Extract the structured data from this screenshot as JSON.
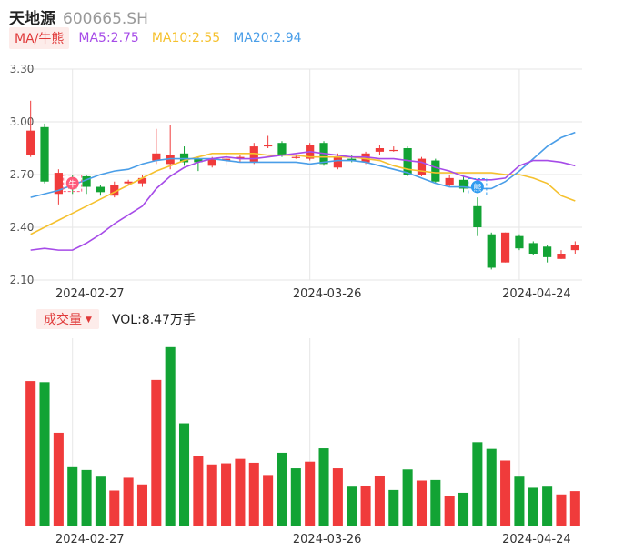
{
  "header": {
    "name": "天地源",
    "code": "600665.SH"
  },
  "ma_bar": {
    "toggle_label": "MA/牛熊",
    "items": [
      {
        "text": "MA5:2.75",
        "color": "#a64be8"
      },
      {
        "text": "MA10:2.55",
        "color": "#f5c12e"
      },
      {
        "text": "MA20:2.94",
        "color": "#4a9ee8"
      }
    ]
  },
  "volume_bar": {
    "toggle_label": "成交量",
    "caret": "▼",
    "vol_text": "VOL:8.47万手"
  },
  "colors": {
    "up": "#f03b3b",
    "down": "#12a334",
    "grid": "#e6e6e6",
    "axis_text": "#555555"
  },
  "markers": [
    {
      "index": 3,
      "label": "牛",
      "color": "#ff5a7a"
    },
    {
      "index": 32,
      "label": "熊",
      "color": "#2f9bf0"
    }
  ],
  "chart_data": [
    {
      "type": "candlestick",
      "y_ticks": [
        "3.30",
        "3.00",
        "2.70",
        "2.40",
        "2.10"
      ],
      "ylim": [
        2.1,
        3.3
      ],
      "x_ticks": [
        {
          "index": 3,
          "label": "2024-02-27"
        },
        {
          "index": 20,
          "label": "2024-03-26"
        },
        {
          "index": 35,
          "label": "2024-04-24"
        }
      ],
      "ohlc": [
        [
          2.81,
          3.12,
          2.8,
          2.95
        ],
        [
          2.97,
          2.99,
          2.65,
          2.66
        ],
        [
          2.59,
          2.73,
          2.53,
          2.71
        ],
        [
          2.63,
          2.7,
          2.59,
          2.62
        ],
        [
          2.69,
          2.7,
          2.59,
          2.63
        ],
        [
          2.63,
          2.64,
          2.58,
          2.6
        ],
        [
          2.58,
          2.66,
          2.57,
          2.64
        ],
        [
          2.65,
          2.67,
          2.64,
          2.66
        ],
        [
          2.65,
          2.7,
          2.63,
          2.68
        ],
        [
          2.78,
          2.96,
          2.76,
          2.82
        ],
        [
          2.76,
          2.98,
          2.73,
          2.81
        ],
        [
          2.82,
          2.86,
          2.75,
          2.77
        ],
        [
          2.79,
          2.8,
          2.72,
          2.77
        ],
        [
          2.75,
          2.8,
          2.74,
          2.79
        ],
        [
          2.78,
          2.82,
          2.75,
          2.79
        ],
        [
          2.79,
          2.81,
          2.77,
          2.8
        ],
        [
          2.77,
          2.88,
          2.76,
          2.86
        ],
        [
          2.86,
          2.92,
          2.85,
          2.87
        ],
        [
          2.88,
          2.89,
          2.8,
          2.81
        ],
        [
          2.8,
          2.81,
          2.79,
          2.8
        ],
        [
          2.79,
          2.88,
          2.78,
          2.87
        ],
        [
          2.88,
          2.89,
          2.75,
          2.76
        ],
        [
          2.74,
          2.82,
          2.73,
          2.8
        ],
        [
          2.79,
          2.81,
          2.77,
          2.78
        ],
        [
          2.77,
          2.83,
          2.76,
          2.82
        ],
        [
          2.83,
          2.87,
          2.81,
          2.85
        ],
        [
          2.84,
          2.86,
          2.83,
          2.84
        ],
        [
          2.85,
          2.86,
          2.69,
          2.7
        ],
        [
          2.7,
          2.8,
          2.69,
          2.79
        ],
        [
          2.78,
          2.79,
          2.65,
          2.66
        ],
        [
          2.64,
          2.7,
          2.63,
          2.68
        ],
        [
          2.67,
          2.69,
          2.6,
          2.62
        ],
        [
          2.52,
          2.57,
          2.35,
          2.4
        ],
        [
          2.36,
          2.37,
          2.16,
          2.17
        ],
        [
          2.2,
          2.37,
          2.2,
          2.37
        ],
        [
          2.35,
          2.36,
          2.27,
          2.28
        ],
        [
          2.31,
          2.32,
          2.24,
          2.25
        ],
        [
          2.29,
          2.3,
          2.2,
          2.23
        ],
        [
          2.22,
          2.27,
          2.22,
          2.25
        ],
        [
          2.27,
          2.32,
          2.25,
          2.3
        ]
      ],
      "ma5": [
        2.27,
        2.28,
        2.27,
        2.27,
        2.31,
        2.36,
        2.42,
        2.47,
        2.52,
        2.62,
        2.69,
        2.74,
        2.77,
        2.79,
        2.8,
        2.79,
        2.79,
        2.8,
        2.81,
        2.82,
        2.83,
        2.82,
        2.81,
        2.8,
        2.8,
        2.79,
        2.79,
        2.78,
        2.77,
        2.74,
        2.72,
        2.69,
        2.67,
        2.67,
        2.68,
        2.75,
        2.78,
        2.78,
        2.77,
        2.75
      ],
      "ma10": [
        2.36,
        2.4,
        2.44,
        2.48,
        2.52,
        2.56,
        2.6,
        2.64,
        2.68,
        2.72,
        2.75,
        2.78,
        2.8,
        2.82,
        2.82,
        2.82,
        2.82,
        2.81,
        2.81,
        2.81,
        2.8,
        2.8,
        2.8,
        2.8,
        2.79,
        2.78,
        2.75,
        2.73,
        2.72,
        2.71,
        2.71,
        2.71,
        2.71,
        2.71,
        2.7,
        2.7,
        2.68,
        2.65,
        2.58,
        2.55
      ],
      "ma20": [
        2.57,
        2.59,
        2.61,
        2.64,
        2.67,
        2.7,
        2.72,
        2.73,
        2.76,
        2.78,
        2.79,
        2.79,
        2.79,
        2.79,
        2.78,
        2.77,
        2.77,
        2.77,
        2.77,
        2.77,
        2.76,
        2.77,
        2.78,
        2.78,
        2.77,
        2.75,
        2.73,
        2.71,
        2.68,
        2.65,
        2.63,
        2.63,
        2.62,
        2.62,
        2.66,
        2.72,
        2.79,
        2.86,
        2.91,
        2.94
      ]
    },
    {
      "type": "bar",
      "x_ticks": [
        {
          "index": 3,
          "label": "2024-02-27"
        },
        {
          "index": 20,
          "label": "2024-03-26"
        },
        {
          "index": 35,
          "label": "2024-04-24"
        }
      ],
      "volumes": [
        26.0,
        25.8,
        16.7,
        10.5,
        10.0,
        8.8,
        6.3,
        8.6,
        7.4,
        26.2,
        32.1,
        18.4,
        12.5,
        11.0,
        11.2,
        12.0,
        11.3,
        9.1,
        13.1,
        10.3,
        11.5,
        13.9,
        10.3,
        7.0,
        7.2,
        9.0,
        6.4,
        10.1,
        8.1,
        8.2,
        5.3,
        5.9,
        15.0,
        13.8,
        11.7,
        8.8,
        6.8,
        7.0,
        5.6,
        6.2
      ],
      "volume_colors": [
        "up",
        "down",
        "up",
        "down",
        "down",
        "down",
        "up",
        "up",
        "up",
        "up",
        "down",
        "down",
        "up",
        "up",
        "up",
        "up",
        "up",
        "up",
        "down",
        "down",
        "up",
        "down",
        "up",
        "down",
        "up",
        "up",
        "down",
        "down",
        "up",
        "down",
        "up",
        "down",
        "down",
        "down",
        "up",
        "down",
        "down",
        "down",
        "up",
        "up"
      ]
    }
  ]
}
